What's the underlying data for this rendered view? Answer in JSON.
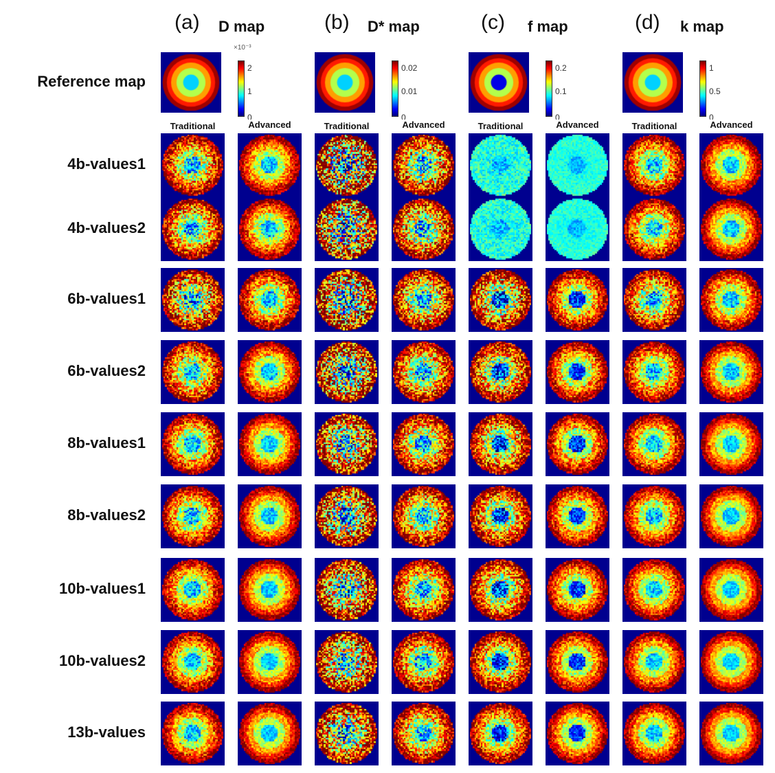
{
  "figure": {
    "columns": [
      {
        "letter": "(a)",
        "title": "D map",
        "colorbar": {
          "ticks": [
            "2",
            "1",
            "0"
          ],
          "exponent": "×10⁻³"
        }
      },
      {
        "letter": "(b)",
        "title": "D* map",
        "colorbar": {
          "ticks": [
            "0.02",
            "0.01",
            "0"
          ],
          "exponent": ""
        }
      },
      {
        "letter": "(c)",
        "title": "f map",
        "colorbar": {
          "ticks": [
            "0.2",
            "0.1",
            "0"
          ],
          "exponent": ""
        }
      },
      {
        "letter": "(d)",
        "title": "k map",
        "colorbar": {
          "ticks": [
            "1",
            "0.5",
            "0"
          ],
          "exponent": ""
        }
      }
    ],
    "reference_label": "Reference map",
    "method_labels": [
      "Traditional",
      "Advanced"
    ],
    "rows": [
      "4b-values1",
      "4b-values2",
      "6b-values1",
      "6b-values2",
      "8b-values1",
      "8b-values2",
      "10b-values1",
      "10b-values2",
      "13b-values"
    ]
  },
  "colors": {
    "background": "#00008f",
    "colormap": "jet"
  }
}
